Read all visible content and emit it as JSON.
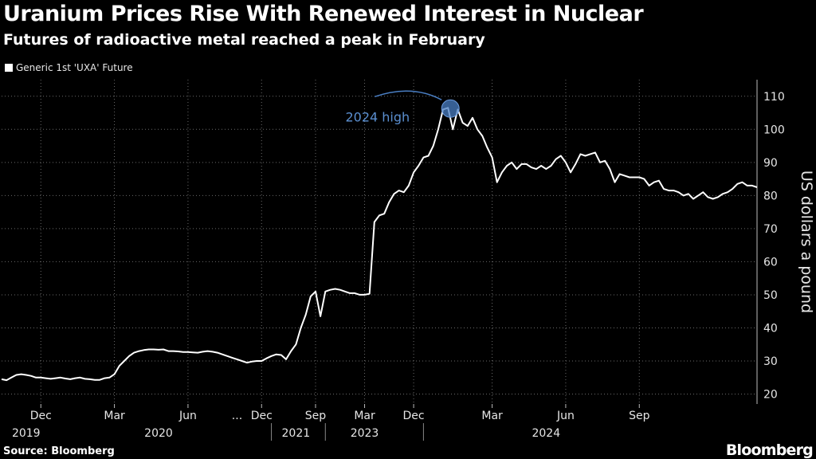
{
  "header": {
    "title": "Uranium Prices Rise With Renewed Interest in Nuclear",
    "subtitle": "Futures of radioactive metal reached a peak in February"
  },
  "footer": {
    "source": "Source: Bloomberg",
    "brand": "Bloomberg"
  },
  "colors": {
    "background": "#000000",
    "line": "#ffffff",
    "grid": "#6a6a6a",
    "annotation": "#4a7fc4"
  },
  "chart_data": {
    "type": "line",
    "title": "Uranium Prices Rise With Renewed Interest in Nuclear",
    "subtitle": "Futures of radioactive metal reached a peak in February",
    "ylabel": "US dollars a pound",
    "ylim": [
      17,
      115
    ],
    "y_ticks": [
      20,
      30,
      40,
      50,
      60,
      70,
      80,
      90,
      100,
      110
    ],
    "y_axis_side": "right",
    "grid": "dotted",
    "legend_position": "top-left",
    "x_axis_note": "compressed, non-linear time axis",
    "x_ticks": [
      {
        "label": "Dec",
        "i": 8
      },
      {
        "label": "Mar",
        "i": 23
      },
      {
        "label": "Jun",
        "i": 38
      },
      {
        "label": "...",
        "i": 48
      },
      {
        "label": "Dec",
        "i": 53
      },
      {
        "label": "Sep",
        "i": 64
      },
      {
        "label": "Mar",
        "i": 74
      },
      {
        "label": "Dec",
        "i": 84
      },
      {
        "label": "Mar",
        "i": 100
      },
      {
        "label": "Jun",
        "i": 115
      },
      {
        "label": "Sep",
        "i": 130
      }
    ],
    "year_labels": [
      {
        "label": "2019",
        "i": 5
      },
      {
        "label": "2020",
        "i": 32
      },
      {
        "label": "2021",
        "i": 60
      },
      {
        "label": "2023",
        "i": 74
      },
      {
        "label": "2024",
        "i": 111
      }
    ],
    "year_separators": [
      55,
      66,
      86
    ],
    "series": [
      {
        "name": "Generic 1st 'UXA' Future",
        "values": [
          24.5,
          24.2,
          25.0,
          25.8,
          26.0,
          25.8,
          25.5,
          25.0,
          25.0,
          24.8,
          24.6,
          24.8,
          25.0,
          24.7,
          24.5,
          24.8,
          25.0,
          24.6,
          24.5,
          24.3,
          24.3,
          24.8,
          25.0,
          26.0,
          28.5,
          30.0,
          31.5,
          32.5,
          33.0,
          33.3,
          33.5,
          33.5,
          33.4,
          33.5,
          33.0,
          33.0,
          32.9,
          32.7,
          32.7,
          32.6,
          32.5,
          32.8,
          33.0,
          32.8,
          32.5,
          32.0,
          31.5,
          31.0,
          30.5,
          30.0,
          29.5,
          29.8,
          30.0,
          30.0,
          30.8,
          31.5,
          32.0,
          31.8,
          30.5,
          33.0,
          35.0,
          40.0,
          44.0,
          49.5,
          51.0,
          43.5,
          51.0,
          51.5,
          51.8,
          51.5,
          51.0,
          50.5,
          50.5,
          50.0,
          50.0,
          50.3,
          72.0,
          74.0,
          74.5,
          78.0,
          80.5,
          81.5,
          81.0,
          83.0,
          87.0,
          89.0,
          91.5,
          92.0,
          95.0,
          100.0,
          106.0,
          106.5,
          100.0,
          106.0,
          102.0,
          101.0,
          103.5,
          100.0,
          98.0,
          94.5,
          91.5,
          84.0,
          87.0,
          89.0,
          90.0,
          88.0,
          89.5,
          89.5,
          88.5,
          88.0,
          89.0,
          88.0,
          89.0,
          91.0,
          92.0,
          90.0,
          87.0,
          89.5,
          92.5,
          92.0,
          92.5,
          93.0,
          90.0,
          90.5,
          88.0,
          84.0,
          86.5,
          86.0,
          85.5,
          85.5,
          85.5,
          85.0,
          83.0,
          84.0,
          84.5,
          82.0,
          81.5,
          81.5,
          81.0,
          80.0,
          80.5,
          79.0,
          80.0,
          81.0,
          79.5,
          79.0,
          79.5,
          80.5,
          81.0,
          82.0,
          83.5,
          84.0,
          83.0,
          83.0,
          82.5
        ]
      }
    ],
    "annotations": [
      {
        "text": "2024 high",
        "i": 91,
        "value": 106.5
      }
    ]
  }
}
